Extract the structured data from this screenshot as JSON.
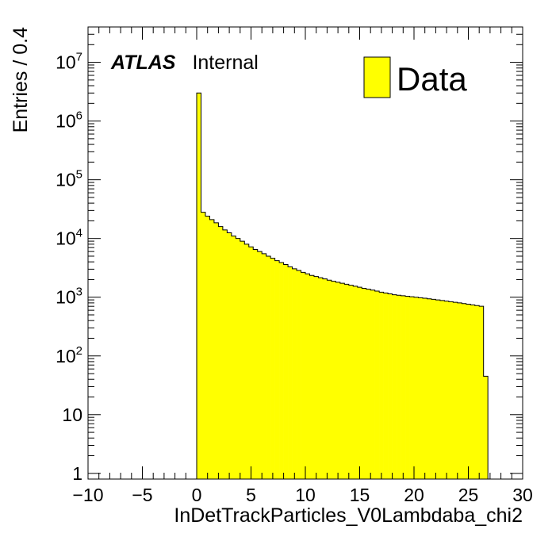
{
  "chart_data": {
    "type": "bar",
    "style": "histogram-step",
    "xlabel": "InDetTrackParticles_V0Lambdaba_chi2",
    "ylabel": "Entries / 0.4",
    "xlim": [
      -10,
      30
    ],
    "ylim": [
      0.8,
      40000000
    ],
    "yscale": "log",
    "bin_width": 0.4,
    "x_tick_labels": [
      "−10",
      "−5",
      "0",
      "5",
      "10",
      "15",
      "20",
      "25",
      "30"
    ],
    "y_tick_labels": [
      {
        "base": "1",
        "exp": ""
      },
      {
        "base": "10",
        "exp": ""
      },
      {
        "base": "10",
        "exp": "2"
      },
      {
        "base": "10",
        "exp": "3"
      },
      {
        "base": "10",
        "exp": "4"
      },
      {
        "base": "10",
        "exp": "5"
      },
      {
        "base": "10",
        "exp": "6"
      },
      {
        "base": "10",
        "exp": "7"
      }
    ],
    "fill_color": "#ffff00",
    "edge_color": "#000000",
    "legend": {
      "label": "Data",
      "position": "top-right"
    },
    "atlas_label": {
      "bold": "ATLAS",
      "text": "Internal"
    },
    "x_start": 0.0,
    "values": [
      3000000,
      28000,
      24000,
      21000,
      18500,
      16000,
      14000,
      12500,
      11000,
      10000,
      9000,
      8000,
      7200,
      6500,
      6000,
      5500,
      5000,
      4600,
      4200,
      3900,
      3600,
      3300,
      3050,
      2850,
      2650,
      2500,
      2350,
      2250,
      2150,
      2050,
      1950,
      1870,
      1800,
      1730,
      1660,
      1600,
      1540,
      1480,
      1420,
      1370,
      1320,
      1270,
      1220,
      1180,
      1140,
      1100,
      1080,
      1060,
      1040,
      1020,
      1000,
      980,
      960,
      940,
      920,
      900,
      880,
      860,
      840,
      820,
      800,
      780,
      760,
      740,
      720,
      700,
      45
    ]
  }
}
